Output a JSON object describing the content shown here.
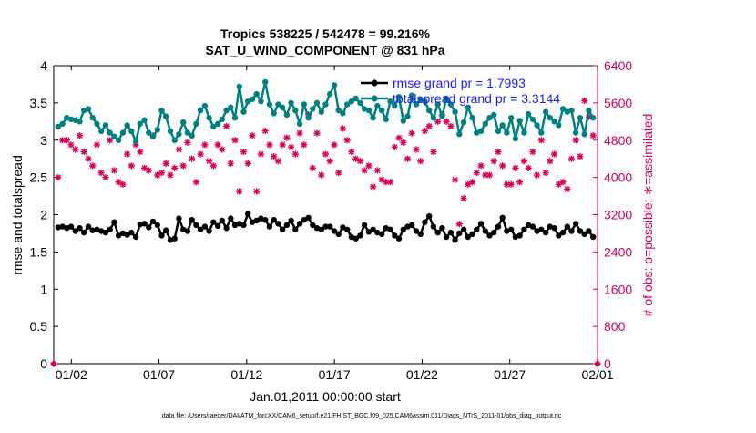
{
  "chart_data": {
    "type": "line",
    "title_line1": "Tropics 538225 / 542478 = 99.216%",
    "title_line2": "SAT_U_WIND_COMPONENT @ 831 hPa",
    "xlabel": "Jan.01,2011 00:00:00 start",
    "ylabel": "rmse and totalspread",
    "ylabel_right": "# of obs: o=possible; ∗=assimilated",
    "x_tick_labels": [
      "01/02",
      "01/07",
      "01/12",
      "01/17",
      "01/22",
      "01/27",
      "02/01"
    ],
    "x_tick_days": [
      1,
      6,
      11,
      16,
      21,
      26,
      31
    ],
    "xlim": [
      0,
      31
    ],
    "y_tick_labels": [
      "0",
      "0.5",
      "1",
      "1.5",
      "2",
      "2.5",
      "3",
      "3.5",
      "4"
    ],
    "ylim": [
      0,
      4
    ],
    "y2_tick_labels": [
      "0",
      "800",
      "1600",
      "2400",
      "3200",
      "4000",
      "4800",
      "5600",
      "6400"
    ],
    "y2lim": [
      0,
      6400
    ],
    "footnote": "data file: /Users/raeder/DAI/ATM_forcXX/CAM6_setup/f.e21.FHIST_BGC.f09_025.CAM6assim.011/Diags_NTrS_2011-01/obs_diag_output.nc",
    "colors": {
      "rmse": "#000000",
      "spread": "#008080",
      "obs": "#d6005a",
      "legend_text": "#1a1aff"
    },
    "series": [
      {
        "name": "rmse",
        "legend": "rmse grand pr = 1.7993",
        "values": [
          1.83,
          1.84,
          1.82,
          1.84,
          1.78,
          1.82,
          1.76,
          1.84,
          1.79,
          1.8,
          1.78,
          1.76,
          1.8,
          1.9,
          1.72,
          1.75,
          1.73,
          1.76,
          1.7,
          1.87,
          1.88,
          1.83,
          1.91,
          1.86,
          1.72,
          1.79,
          1.66,
          1.68,
          1.95,
          1.8,
          1.78,
          1.93,
          1.86,
          1.8,
          1.84,
          1.78,
          1.9,
          1.85,
          1.92,
          1.82,
          1.95,
          1.86,
          1.88,
          1.86,
          2.01,
          1.9,
          1.92,
          1.95,
          1.93,
          1.84,
          1.93,
          1.88,
          1.8,
          1.86,
          1.92,
          1.8,
          1.88,
          1.93,
          1.96,
          1.86,
          1.82,
          1.8,
          1.84,
          1.84,
          1.78,
          1.74,
          1.83,
          1.8,
          1.7,
          1.68,
          1.72,
          1.86,
          1.77,
          1.8,
          1.76,
          1.74,
          1.82,
          1.8,
          1.72,
          1.68,
          1.8,
          1.84,
          1.86,
          1.78,
          1.74,
          1.9,
          1.98,
          1.84,
          1.76,
          1.82,
          1.7,
          1.76,
          1.66,
          1.75,
          1.8,
          1.7,
          1.74,
          1.8,
          1.88,
          1.78,
          1.72,
          1.76,
          1.84,
          1.96,
          1.78,
          1.8,
          1.7,
          1.72,
          1.8,
          1.86,
          1.84,
          1.78,
          1.8,
          1.76,
          1.84,
          1.82,
          1.72,
          1.76,
          1.84,
          1.78,
          1.88,
          1.78,
          1.74,
          1.78,
          1.7
        ]
      },
      {
        "name": "totalspread",
        "legend": "totalspread grand pr = 3.3144",
        "values": [
          3.18,
          3.22,
          3.3,
          3.28,
          3.27,
          3.25,
          3.4,
          3.42,
          3.3,
          3.22,
          3.12,
          3.2,
          3.1,
          3.05,
          3.0,
          3.1,
          3.2,
          3.12,
          2.98,
          3.22,
          3.27,
          3.1,
          3.05,
          3.14,
          3.4,
          3.32,
          3.12,
          3.0,
          3.08,
          3.24,
          3.1,
          3.06,
          3.22,
          3.4,
          3.46,
          3.3,
          3.18,
          3.22,
          3.28,
          3.4,
          3.44,
          3.3,
          3.72,
          3.38,
          3.52,
          3.55,
          3.62,
          3.52,
          3.78,
          3.48,
          3.36,
          3.48,
          3.44,
          3.34,
          3.5,
          3.4,
          3.22,
          3.48,
          3.3,
          3.42,
          3.5,
          3.38,
          3.48,
          3.62,
          3.74,
          3.4,
          3.36,
          3.48,
          3.52,
          3.56,
          3.5,
          3.42,
          3.4,
          3.3,
          3.46,
          3.4,
          3.28,
          3.52,
          3.46,
          3.58,
          3.26,
          3.32,
          3.6,
          3.48,
          3.54,
          3.52,
          3.4,
          3.3,
          3.48,
          3.32,
          3.56,
          3.48,
          3.38,
          3.08,
          3.24,
          3.44,
          3.3,
          3.1,
          3.12,
          3.22,
          3.3,
          3.34,
          3.12,
          3.2,
          3.1,
          3.3,
          3.02,
          3.26,
          3.1,
          3.35,
          3.28,
          3.2,
          3.1,
          3.38,
          3.3,
          3.25,
          3.2,
          3.42,
          3.38,
          3.4,
          3.1,
          3.3,
          3.08,
          3.4,
          3.3
        ]
      },
      {
        "name": "obs_assimilated",
        "values": [
          4000,
          4800,
          4800,
          4700,
          4600,
          4900,
          4550,
          4400,
          4250,
          4700,
          4100,
          4000,
          4800,
          4150,
          3900,
          3850,
          4500,
          4250,
          4700,
          4550,
          4200,
          4150,
          4900,
          4050,
          4100,
          4300,
          4050,
          4200,
          4600,
          4250,
          4750,
          4400,
          3900,
          4500,
          4700,
          4350,
          4250,
          4700,
          4600,
          5100,
          4300,
          4800,
          3700,
          4550,
          4300,
          4900,
          3700,
          4500,
          5000,
          4700,
          4450,
          4350,
          4700,
          4850,
          4650,
          4500,
          4950,
          4700,
          5350,
          4200,
          4950,
          4050,
          4500,
          4350,
          4700,
          4100,
          5050,
          4800,
          4550,
          4400,
          4350,
          4150,
          4250,
          3800,
          4150,
          3950,
          3900,
          3900,
          4650,
          4850,
          4750,
          4400,
          4950,
          4600,
          4350,
          5000,
          5100,
          4550,
          5200,
          5350,
          5200,
          5100,
          3950,
          3000,
          3550,
          3850,
          3900,
          4100,
          4250,
          4050,
          4050,
          4350,
          4550,
          4250,
          3850,
          3850,
          4200,
          3900,
          4350,
          4200,
          4550,
          4050,
          4800,
          4100,
          4350,
          4500,
          3850,
          3900,
          3750,
          4400,
          4800,
          4450,
          5650,
          5300,
          4900
        ]
      },
      {
        "name": "obs_possible_markers",
        "values": [
          0,
          0
        ]
      }
    ]
  }
}
